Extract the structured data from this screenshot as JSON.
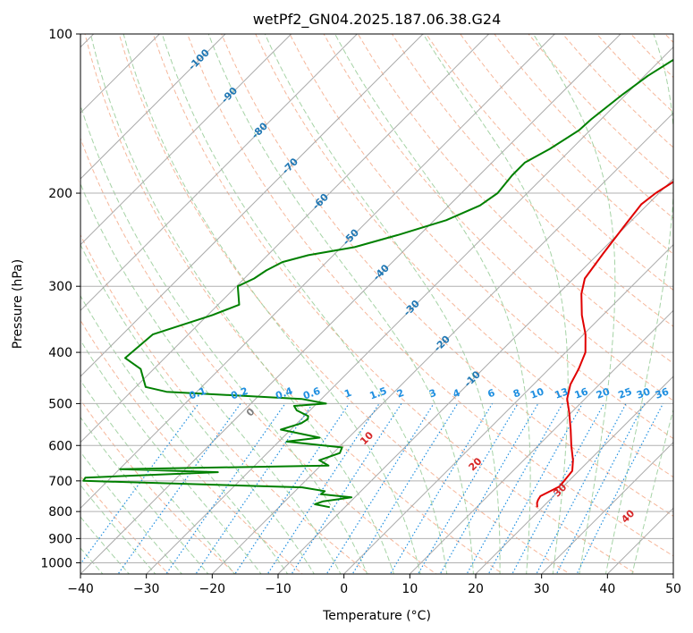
{
  "chart_data": {
    "type": "line",
    "title": "wetPf2_GN04.2025.187.06.38.G24",
    "xlabel": "Temperature (°C)",
    "ylabel": "Pressure (hPa)",
    "xlim": [
      -40,
      50
    ],
    "ylim": [
      1050,
      100
    ],
    "y_scale": "log",
    "grid": true,
    "x_ticks": [
      -40,
      -30,
      -20,
      -10,
      0,
      10,
      20,
      30,
      40,
      50
    ],
    "y_ticks": [
      100,
      200,
      300,
      400,
      500,
      600,
      700,
      800,
      900,
      1000
    ],
    "colors": {
      "temperature": "#e00000",
      "dewpoint": "#008000",
      "isotherm": "#aaaaaa",
      "dry_adiabat": "#f4a582",
      "moist_adiabat": "#90c890",
      "mixing_ratio": "#1f8fe0",
      "label_isotherm": "#1f77b4",
      "label_moist": "#d62728",
      "label_mixing": "#1f8fe0"
    },
    "series": [
      {
        "role": "temperature",
        "points": [
          [
            19.2,
            785
          ],
          [
            18.5,
            770
          ],
          [
            18.2,
            760
          ],
          [
            18.0,
            748
          ],
          [
            18.6,
            735
          ],
          [
            19.4,
            718
          ],
          [
            19.3,
            700
          ],
          [
            19.0,
            670
          ],
          [
            17.5,
            640
          ],
          [
            15.0,
            600
          ],
          [
            12.5,
            560
          ],
          [
            9.7,
            520
          ],
          [
            7.3,
            490
          ],
          [
            5.6,
            460
          ],
          [
            4.5,
            430
          ],
          [
            3.0,
            400
          ],
          [
            0.3,
            370
          ],
          [
            -3.2,
            340
          ],
          [
            -6.5,
            310
          ],
          [
            -8.3,
            290
          ],
          [
            -9.3,
            260
          ],
          [
            -10.3,
            230
          ],
          [
            -11.0,
            210
          ],
          [
            -10.5,
            200
          ],
          [
            -9.5,
            190
          ],
          [
            -8.2,
            180
          ],
          [
            -7.3,
            170
          ],
          [
            -5.3,
            160
          ],
          [
            -3.0,
            150
          ],
          [
            -0.5,
            140
          ],
          [
            2.4,
            130
          ],
          [
            5.3,
            120
          ],
          [
            7.5,
            113
          ],
          [
            10.3,
            106
          ],
          [
            11.8,
            100
          ]
        ]
      },
      {
        "role": "dewpoint",
        "points": [
          [
            -12.3,
            785
          ],
          [
            -15.0,
            775
          ],
          [
            -14.2,
            765
          ],
          [
            -10.5,
            752
          ],
          [
            -15.6,
            742
          ],
          [
            -15.5,
            732
          ],
          [
            -19.5,
            720
          ],
          [
            -53.7,
            700
          ],
          [
            -53.9,
            690
          ],
          [
            -34.6,
            674
          ],
          [
            -49.9,
            665
          ],
          [
            -18.8,
            655
          ],
          [
            -21.0,
            640
          ],
          [
            -19.0,
            620
          ],
          [
            -19.5,
            605
          ],
          [
            -28.8,
            590
          ],
          [
            -24.4,
            580
          ],
          [
            -31.5,
            560
          ],
          [
            -29.4,
            545
          ],
          [
            -29.0,
            535
          ],
          [
            -29.4,
            528
          ],
          [
            -32.0,
            515
          ],
          [
            -33.1,
            505
          ],
          [
            -28.6,
            500
          ],
          [
            -33.0,
            490
          ],
          [
            -54.6,
            475
          ],
          [
            -58.5,
            465
          ],
          [
            -62.0,
            430
          ],
          [
            -66.0,
            410
          ],
          [
            -65.4,
            370
          ],
          [
            -59.3,
            340
          ],
          [
            -56.8,
            325
          ],
          [
            -59.8,
            300
          ],
          [
            -58.5,
            290
          ],
          [
            -57.9,
            280
          ],
          [
            -56.7,
            270
          ],
          [
            -53.8,
            262
          ],
          [
            -48.0,
            253
          ],
          [
            -43.3,
            240
          ],
          [
            -38.2,
            225
          ],
          [
            -35.3,
            211
          ],
          [
            -34.5,
            200
          ],
          [
            -35.0,
            185
          ],
          [
            -35.0,
            175
          ],
          [
            -33.3,
            165
          ],
          [
            -31.7,
            152
          ],
          [
            -31.5,
            145
          ],
          [
            -30.5,
            130
          ],
          [
            -29.5,
            120
          ],
          [
            -27.7,
            110
          ],
          [
            -26.8,
            100
          ]
        ]
      }
    ],
    "isotherm_labels": [
      "-100",
      "-90",
      "-80",
      "-70",
      "-60",
      "-50",
      "-40",
      "-30",
      "-20",
      "-10"
    ],
    "isotherm_label_values": [
      -100,
      -90,
      -80,
      -70,
      -60,
      -50,
      -40,
      -30,
      -20,
      -10
    ],
    "mixing_ratio_labels": [
      "0.1",
      "0.2",
      "0.4",
      "0.6",
      "1",
      "1.5",
      "2",
      "3",
      "4",
      "6",
      "8",
      "10",
      "13",
      "16",
      "20",
      "25",
      "30",
      "36"
    ],
    "mixing_ratio_values": [
      0.1,
      0.2,
      0.4,
      0.6,
      1,
      1.5,
      2,
      3,
      4,
      6,
      8,
      10,
      13,
      16,
      20,
      25,
      30,
      36
    ],
    "moist_adiabat_labels": [
      "0",
      "10",
      "20",
      "30",
      "40"
    ],
    "moist_adiabat_values": [
      0,
      10,
      20,
      30,
      40
    ]
  }
}
